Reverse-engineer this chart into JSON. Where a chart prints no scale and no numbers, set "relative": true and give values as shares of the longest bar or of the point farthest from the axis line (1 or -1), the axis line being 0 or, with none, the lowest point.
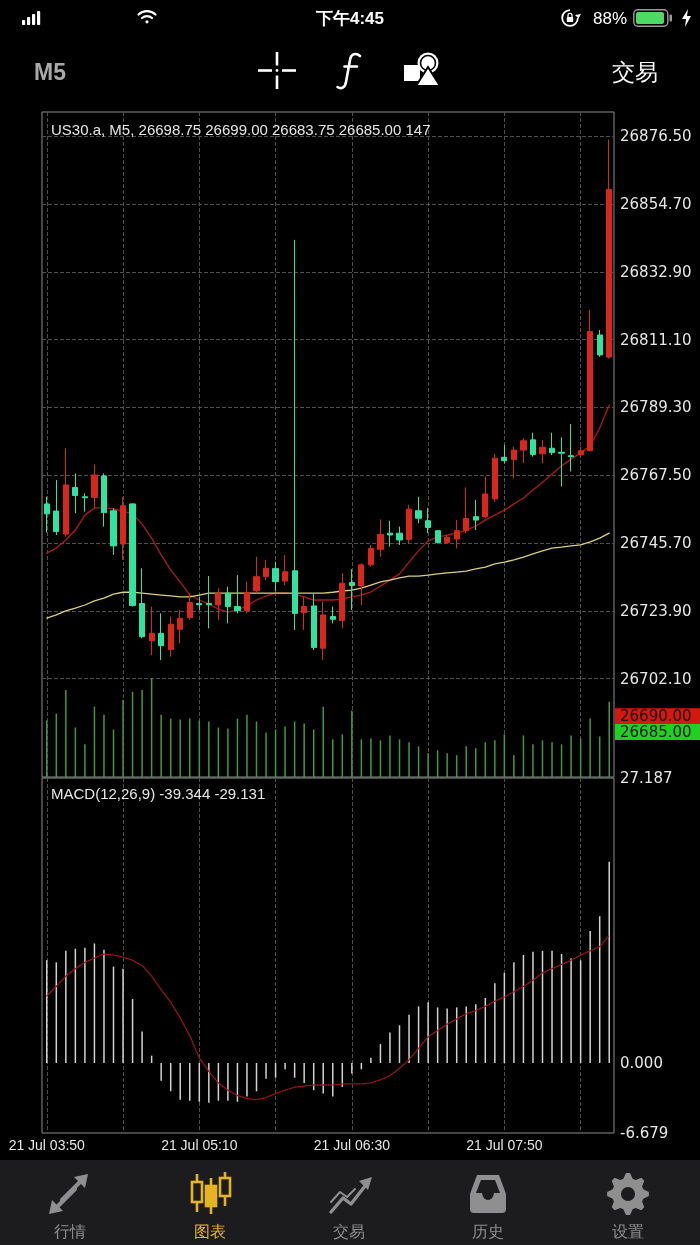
{
  "chart_data": [
    {
      "type": "other",
      "annotations": [
        "下午4:45",
        "88%",
        "M5",
        "交易"
      ]
    },
    {
      "type": "candlestick",
      "title": "US30.a, M5, 26698.75 26699.00 26683.75 26685.00 147",
      "categories": [
        null,
        null,
        null,
        null,
        null,
        null,
        null,
        null,
        null,
        null,
        null,
        null,
        null,
        null,
        null,
        null,
        null,
        null,
        null,
        null,
        null,
        null,
        null,
        null,
        null,
        null,
        null,
        null,
        null,
        null,
        null,
        null,
        null,
        null,
        null,
        null,
        null,
        null,
        null,
        null,
        null,
        null,
        null,
        null,
        null,
        null,
        null,
        null,
        null,
        null,
        null,
        null,
        null,
        null,
        null,
        null,
        null,
        null,
        null,
        null
      ],
      "ohlc": [
        [
          26758.3,
          26760.6,
          26749.1,
          26755.1
        ],
        [
          26756.0,
          26766.0,
          26748.3,
          26749.4
        ],
        [
          26748.6,
          26776.2,
          26747.8,
          26764.4
        ],
        [
          26763.6,
          26768.1,
          26755.3,
          26761.0
        ],
        [
          26760.6,
          26761.7,
          26755.8,
          26760.3
        ],
        [
          26760.4,
          26771.0,
          26756.9,
          26767.6
        ],
        [
          26767.3,
          26768.1,
          26751.0,
          26755.5
        ],
        [
          26756.1,
          26756.9,
          26741.9,
          26744.8
        ],
        [
          26745.4,
          26760.6,
          26740.3,
          26757.7
        ],
        [
          26758.3,
          26758.5,
          26725.3,
          26725.6
        ],
        [
          26726.3,
          26737.6,
          26715.1,
          26715.6
        ],
        [
          26714.3,
          26725.3,
          26709.7,
          26716.7
        ],
        [
          26716.7,
          26723.1,
          26708.1,
          26712.7
        ],
        [
          26711.5,
          26722.1,
          26709.2,
          26719.6
        ],
        [
          26718.0,
          26724.2,
          26713.5,
          26721.5
        ],
        [
          26721.7,
          26729.6,
          26721.0,
          26726.6
        ],
        [
          26726.3,
          26728.5,
          26724.2,
          26725.9
        ],
        [
          26726.3,
          26735.1,
          26718.3,
          26725.9
        ],
        [
          26725.8,
          26731.2,
          26721.0,
          26729.6
        ],
        [
          26729.6,
          26731.7,
          26719.9,
          26725.3
        ],
        [
          26725.3,
          26735.4,
          26723.1,
          26724.0
        ],
        [
          26724.0,
          26733.3,
          26723.1,
          26729.8
        ],
        [
          26730.4,
          26741.3,
          26729.6,
          26734.9
        ],
        [
          26734.9,
          26740.3,
          26733.8,
          26737.6
        ],
        [
          26737.5,
          26739.7,
          26730.1,
          26733.3
        ],
        [
          26733.5,
          26741.9,
          26732.2,
          26736.5
        ],
        [
          26736.8,
          26843.2,
          26717.8,
          26723.1
        ],
        [
          26723.3,
          26728.5,
          26717.8,
          26725.3
        ],
        [
          26725.5,
          26729.6,
          26711.3,
          26712.1
        ],
        [
          26711.9,
          26726.9,
          26708.1,
          26722.6
        ],
        [
          26722.1,
          26725.3,
          26719.9,
          26721.2
        ],
        [
          26720.8,
          26736.0,
          26718.3,
          26732.8
        ],
        [
          26733.0,
          26737.3,
          26724.2,
          26732.1
        ],
        [
          26731.9,
          26739.2,
          26725.8,
          26738.7
        ],
        [
          26738.7,
          26745.1,
          26738.1,
          26744.0
        ],
        [
          26743.7,
          26753.3,
          26741.3,
          26748.5
        ],
        [
          26748.9,
          26752.9,
          26744.6,
          26748.3
        ],
        [
          26748.9,
          26751.0,
          26745.1,
          26746.7
        ],
        [
          26746.9,
          26758.0,
          26745.6,
          26756.6
        ],
        [
          26756.1,
          26760.6,
          26752.1,
          26753.7
        ],
        [
          26752.9,
          26756.9,
          26748.9,
          26750.7
        ],
        [
          26749.7,
          26749.9,
          26745.6,
          26745.9
        ],
        [
          26745.9,
          26748.3,
          26745.6,
          26747.6
        ],
        [
          26747.0,
          26753.1,
          26744.0,
          26749.7
        ],
        [
          26749.7,
          26763.6,
          26748.9,
          26753.6
        ],
        [
          26754.2,
          26759.6,
          26749.9,
          26753.1
        ],
        [
          26754.2,
          26767.1,
          26753.7,
          26761.5
        ],
        [
          26759.9,
          26774.4,
          26759.0,
          26773.0
        ],
        [
          26773.3,
          26777.3,
          26771.3,
          26772.2
        ],
        [
          26772.6,
          26776.7,
          26766.5,
          26775.6
        ],
        [
          26775.6,
          26779.4,
          26771.4,
          26778.6
        ],
        [
          26778.9,
          26781.2,
          26773.5,
          26774.2
        ],
        [
          26774.4,
          26778.9,
          26771.4,
          26776.5
        ],
        [
          26776.2,
          26781.2,
          26774.0,
          26774.8
        ],
        [
          26774.9,
          26779.7,
          26763.9,
          26774.6
        ],
        [
          26773.8,
          26784.0,
          26768.7,
          26773.5
        ],
        [
          26774.2,
          26776.7,
          26773.5,
          26775.4
        ],
        [
          26775.4,
          26820.7,
          26775.1,
          26813.7
        ],
        [
          26812.6,
          26814.2,
          26805.6,
          26806.2
        ],
        [
          26805.5,
          26875.4,
          26805.0,
          26859.4
        ]
      ],
      "colors": [
        "#2fe3a0",
        "#2fe3a0",
        "#d9271c",
        "#2fe3a0",
        "#2fe3a0",
        "#d9271c",
        "#2fe3a0",
        "#2fe3a0",
        "#d9271c",
        "#2fe3a0",
        "#2fe3a0",
        "#d9271c",
        "#2fe3a0",
        "#d9271c",
        "#d9271c",
        "#d9271c",
        "#2fe3a0",
        "#2fe3a0",
        "#d9271c",
        "#2fe3a0",
        "#2fe3a0",
        "#d9271c",
        "#d9271c",
        "#d9271c",
        "#2fe3a0",
        "#d9271c",
        "#2fe3a0",
        "#d9271c",
        "#2fe3a0",
        "#d9271c",
        "#2fe3a0",
        "#d9271c",
        "#2fe3a0",
        "#d9271c",
        "#d9271c",
        "#d9271c",
        "#2fe3a0",
        "#2fe3a0",
        "#d9271c",
        "#2fe3a0",
        "#2fe3a0",
        "#2fe3a0",
        "#d9271c",
        "#d9271c",
        "#d9271c",
        "#2fe3a0",
        "#d9271c",
        "#d9271c",
        "#2fe3a0",
        "#d9271c",
        "#d9271c",
        "#2fe3a0",
        "#d9271c",
        "#2fe3a0",
        "#2fe3a0",
        "#2fe3a0",
        "#d9271c",
        "#d9271c",
        "#2fe3a0",
        "#d9271c"
      ],
      "series": [
        {
          "type": "line",
          "color": "#b3161a",
          "values": [
            26742.5,
            26744.1,
            26746.7,
            26749.9,
            26754.7,
            26757.0,
            26757.0,
            26756.7,
            26756.0,
            26755.1,
            26751.8,
            26747.3,
            26741.9,
            26737.1,
            26733.2,
            26729.0,
            26727.4,
            26726.1,
            26724.5,
            26723.5,
            26724.2,
            26725.5,
            26727.4,
            26728.7,
            26729.6,
            26729.6,
            26729.3,
            26728.4,
            26727.4,
            26727.4,
            26727.4,
            26727.7,
            26728.4,
            26729.0,
            26730.0,
            26731.9,
            26733.8,
            26735.8,
            26739.6,
            26743.2,
            26746.4,
            26747.6,
            26748.3,
            26748.9,
            26749.9,
            26751.2,
            26753.1,
            26754.7,
            26756.3,
            26758.3,
            26760.2,
            26762.8,
            26765.3,
            26767.9,
            26770.5,
            26772.7,
            26774.7,
            26776.9,
            26782.7,
            26790.1
          ]
        },
        {
          "type": "line",
          "color": "#d8cf7c",
          "values": [
            26721.6,
            26722.6,
            26723.9,
            26724.8,
            26725.8,
            26727.1,
            26728.0,
            26729.3,
            26729.9,
            26729.9,
            26729.6,
            26729.3,
            26729.0,
            26728.7,
            26728.4,
            26728.4,
            26729.0,
            26729.6,
            26729.6,
            26729.6,
            26729.6,
            26729.6,
            26729.6,
            26729.6,
            26729.6,
            26729.6,
            26729.6,
            26729.6,
            26729.6,
            26729.6,
            26729.9,
            26730.3,
            26730.6,
            26731.2,
            26732.2,
            26733.2,
            26733.8,
            26734.5,
            26735.1,
            26735.1,
            26735.4,
            26735.8,
            26736.1,
            26736.4,
            26736.7,
            26737.4,
            26738.0,
            26739.0,
            26739.6,
            26740.3,
            26741.2,
            26742.2,
            26743.2,
            26744.1,
            26744.4,
            26744.8,
            26745.1,
            26746.1,
            26747.3,
            26748.9
          ]
        }
      ],
      "ylim": [
        26670.5,
        26884.3
      ],
      "yticks": [
        {
          "value": 26702.1,
          "label": "26702.10"
        },
        {
          "value": 26723.9,
          "label": "26723.90"
        },
        {
          "value": 26745.7,
          "label": "26745.70"
        },
        {
          "value": 26767.5,
          "label": "26767.50"
        },
        {
          "value": 26789.3,
          "label": "26789.30"
        },
        {
          "value": 26811.1,
          "label": "26811.10"
        },
        {
          "value": 26832.9,
          "label": "26832.90"
        },
        {
          "value": 26854.7,
          "label": "26854.70"
        },
        {
          "value": 26876.5,
          "label": "26876.50"
        }
      ],
      "annotations": [
        "26690.00",
        "26685.00"
      ],
      "grid": true,
      "marker": "none",
      "tick_labels": "y"
    },
    {
      "type": "bar",
      "relative": true,
      "color": "#3f9a3f",
      "tick_labels": false,
      "categories": [
        null,
        null,
        null,
        null,
        null,
        null,
        null,
        null,
        null,
        null,
        null,
        null,
        null,
        null,
        null,
        null,
        null,
        null,
        null,
        null,
        null,
        null,
        null,
        null,
        null,
        null,
        null,
        null,
        null,
        null,
        null,
        null,
        null,
        null,
        null,
        null,
        null,
        null,
        null,
        null,
        null,
        null,
        null,
        null,
        null,
        null,
        null,
        null,
        null,
        null,
        null,
        null,
        null,
        null,
        null,
        null,
        null,
        null,
        null,
        null
      ],
      "values": [
        0.57,
        0.64,
        0.88,
        0.5,
        0.33,
        0.71,
        0.63,
        0.48,
        0.78,
        0.86,
        0.88,
        1,
        0.63,
        0.59,
        0.58,
        0.59,
        0.57,
        0.56,
        0.5,
        0.49,
        0.59,
        0.63,
        0.56,
        0.45,
        0.48,
        0.51,
        0.56,
        0.54,
        0.48,
        0.71,
        0.38,
        0.43,
        0.67,
        0.38,
        0.39,
        0.37,
        0.42,
        0.38,
        0.35,
        0.31,
        0.24,
        0.27,
        0.24,
        0.22,
        0.31,
        0.29,
        0.35,
        0.37,
        0.43,
        0.22,
        0.42,
        0.33,
        0.37,
        0.35,
        0.33,
        0.42,
        0.39,
        0.59,
        0.41,
        0.76
      ]
    },
    {
      "type": "bar",
      "title": "MACD(12,26,9) -39.344 -29.131",
      "categories": [
        "21 Jul 03:50",
        null,
        null,
        null,
        null,
        null,
        null,
        null,
        null,
        null,
        null,
        null,
        null,
        null,
        null,
        null,
        "21 Jul 05:10",
        null,
        null,
        null,
        null,
        null,
        null,
        null,
        null,
        null,
        null,
        null,
        null,
        null,
        null,
        null,
        "21 Jul 06:30",
        null,
        null,
        null,
        null,
        null,
        null,
        null,
        null,
        null,
        null,
        null,
        null,
        null,
        null,
        null,
        "21 Jul 07:50",
        null,
        null,
        null,
        null,
        null,
        null,
        null,
        null,
        null,
        null,
        null
      ],
      "series": [
        {
          "type": "bar",
          "color": "#d2d2d2",
          "values": [
            9.8,
            9.6,
            10.7,
            10.9,
            11.0,
            11.4,
            10.8,
            9.2,
            9.0,
            6.1,
            3.0,
            0.7,
            -1.7,
            -2.7,
            -3.5,
            -3.6,
            -3.7,
            -3.8,
            -3.6,
            -3.6,
            -3.7,
            -3.2,
            -2.7,
            -1.5,
            -1.4,
            -0.6,
            -1.4,
            -1.9,
            -2.6,
            -2.9,
            -3.2,
            -2.3,
            -1.0,
            -0.6,
            0.5,
            1.8,
            2.9,
            3.6,
            4.6,
            5.4,
            5.8,
            5.3,
            5.2,
            5.3,
            5.4,
            5.6,
            6.2,
            7.6,
            8.6,
            9.6,
            10.3,
            10.6,
            10.7,
            10.7,
            10.4,
            10.0,
            9.8,
            12.6,
            14.0,
            19.2
          ]
        },
        {
          "type": "line",
          "color": "#a3121c",
          "line_style": "dotted",
          "values": [
            6.4,
            7.3,
            8.3,
            9.0,
            9.6,
            10.0,
            10.4,
            10.3,
            10.1,
            9.8,
            9.3,
            8.3,
            7.0,
            5.8,
            4.3,
            2.6,
            0.5,
            -0.8,
            -1.9,
            -2.6,
            -3.1,
            -3.4,
            -3.5,
            -3.3,
            -2.9,
            -2.6,
            -2.3,
            -2.2,
            -2.1,
            -2.1,
            -2.1,
            -2.0,
            -2.0,
            -2.0,
            -1.9,
            -1.6,
            -1.2,
            -0.5,
            0.3,
            1.4,
            2.5,
            3.1,
            3.7,
            4.2,
            4.7,
            5.0,
            5.4,
            5.9,
            6.3,
            6.8,
            7.3,
            7.9,
            8.6,
            9.0,
            9.4,
            9.8,
            10.3,
            10.7,
            11.1,
            12.2
          ]
        }
      ],
      "ylim": [
        -6.679,
        27.187
      ],
      "yticks": [
        -6.679,
        {
          "value": 0,
          "label": "0.000"
        },
        27.187
      ],
      "grid": "x",
      "marker": "none"
    },
    {
      "type": "other",
      "annotations": [
        "行情",
        "图表",
        "交易",
        "历史",
        "设置"
      ]
    }
  ]
}
